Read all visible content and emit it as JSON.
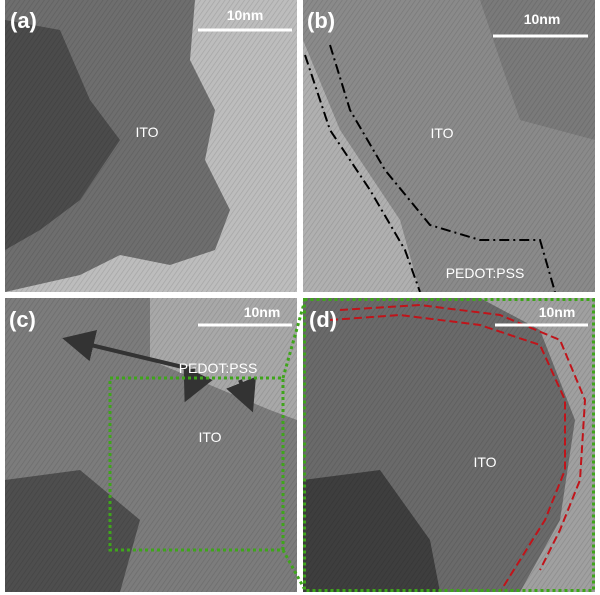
{
  "panels": [
    {
      "label": "(a)",
      "scale_bar": "10nm",
      "annotations": [
        "ITO"
      ]
    },
    {
      "label": "(b)",
      "scale_bar": "10nm",
      "annotations": [
        "ITO",
        "PEDOT:PSS"
      ]
    },
    {
      "label": "(c)",
      "scale_bar": "10nm",
      "annotations": [
        "PEDOT:PSS",
        "ITO"
      ]
    },
    {
      "label": "(d)",
      "scale_bar": "10nm",
      "annotations": [
        "ITO"
      ]
    }
  ]
}
